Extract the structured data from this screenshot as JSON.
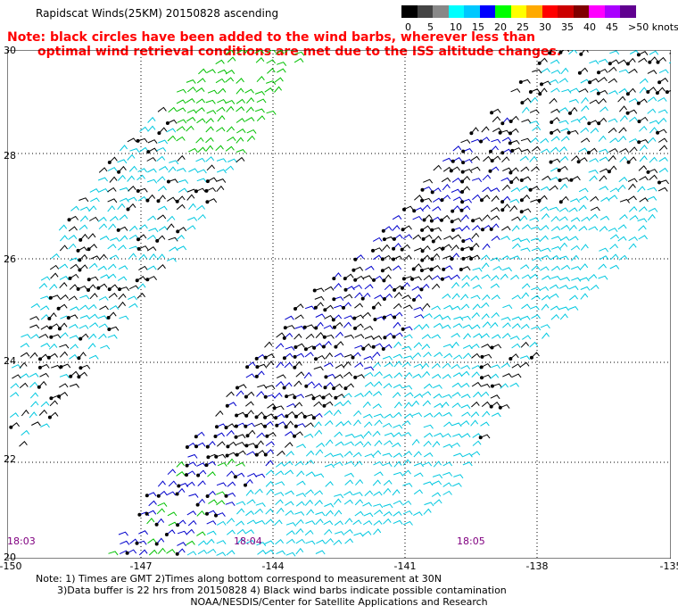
{
  "title": "Rapidscat Winds(25KM) 20150828 ascending",
  "note_line1": "Note: black circles have been added to the wind barbs, wherever less than",
  "note_line2": "optimal wind retrieval conditions are met due to the ISS altitude changes.",
  "legend": {
    "labels": [
      "0",
      "5",
      "10",
      "15",
      "20",
      "25",
      "30",
      "35",
      "40",
      "45",
      ">50 knots"
    ],
    "colors": [
      "#000000",
      "#444444",
      "#888888",
      "#00ffff",
      "#00c8ff",
      "#0000ff",
      "#00ff00",
      "#ffff00",
      "#ffaa00",
      "#ff0000",
      "#cc0000",
      "#800000",
      "#ff00ff",
      "#aa00ff",
      "#600090"
    ]
  },
  "axes": {
    "y_ticks": [
      "30",
      "28",
      "26",
      "24",
      "22",
      "20"
    ],
    "x_ticks": [
      "-150",
      "-147",
      "-144",
      "-141",
      "-138",
      "-135"
    ],
    "time_labels": [
      "18:03",
      "18:04",
      "18:05"
    ]
  },
  "footer_line1": "Note: 1) Times are GMT 2)Times along bottom correspond to measurement at 30N",
  "footer_line2": "3)Data buffer is 22 hrs from 20150828 4) Black wind barbs indicate possible contamination",
  "credit": "NOAA/NESDIS/Center for Satellite Applications and Research",
  "colors": {
    "note": "#ff0000",
    "time_labels": "#800080",
    "barb_black": "#000000",
    "barb_cyan": "#00c8e0",
    "barb_blue": "#0000cc",
    "barb_green": "#00c000"
  }
}
